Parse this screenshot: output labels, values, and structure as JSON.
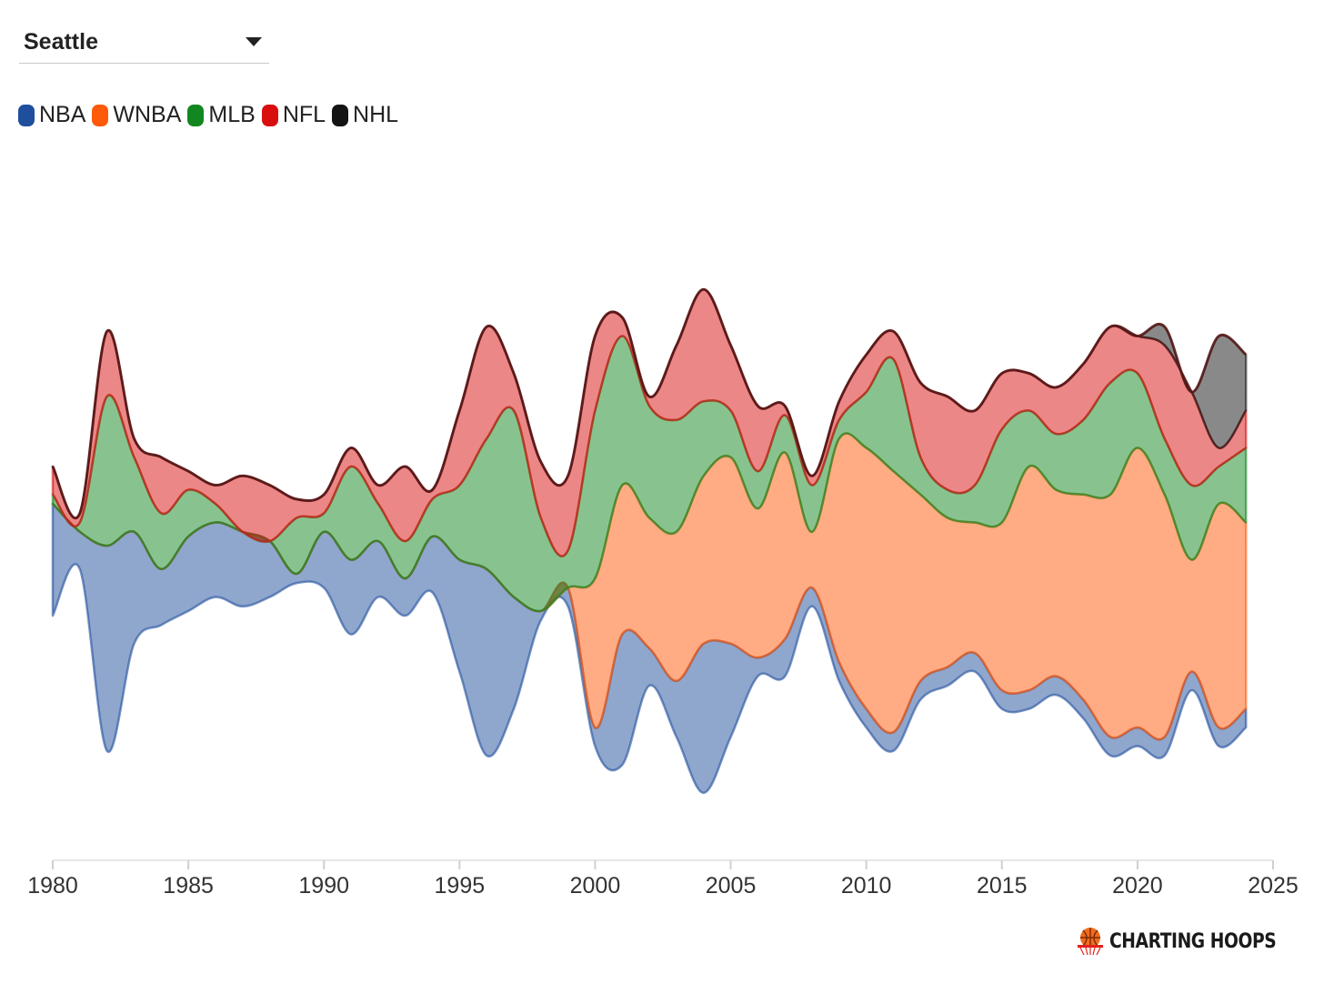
{
  "selector": {
    "value": "Seattle"
  },
  "legend": [
    {
      "label": "NBA",
      "color": "#1f4e9c"
    },
    {
      "label": "WNBA",
      "color": "#ff5a0a"
    },
    {
      "label": "MLB",
      "color": "#12871f"
    },
    {
      "label": "NFL",
      "color": "#d90f0f"
    },
    {
      "label": "NHL",
      "color": "#141414"
    }
  ],
  "brand": {
    "name": "CHARTING HOOPS"
  },
  "chart_data": {
    "type": "area",
    "subtype": "streamgraph",
    "title": "",
    "xlabel": "",
    "ylabel": "",
    "xlim": [
      1980,
      2025
    ],
    "x_ticks": [
      1980,
      1985,
      1990,
      1995,
      2000,
      2005,
      2010,
      2015,
      2020,
      2025
    ],
    "years": [
      1980,
      1981,
      1982,
      1983,
      1984,
      1985,
      1986,
      1987,
      1988,
      1989,
      1990,
      1991,
      1992,
      1993,
      1994,
      1995,
      1996,
      1997,
      1998,
      1999,
      2000,
      2001,
      2002,
      2003,
      2004,
      2005,
      2006,
      2007,
      2008,
      2009,
      2010,
      2011,
      2012,
      2013,
      2014,
      2015,
      2016,
      2017,
      2018,
      2019,
      2020,
      2021,
      2022,
      2023,
      2024
    ],
    "series": [
      {
        "name": "NBA",
        "values": [
          6,
          2,
          11,
          6,
          3,
          4,
          4,
          4,
          3,
          0.5,
          3,
          4,
          3,
          2,
          3,
          6,
          10,
          6,
          0.5,
          1,
          1,
          7,
          2,
          3,
          8,
          5,
          1,
          2,
          1,
          1,
          1,
          1,
          1,
          1,
          1,
          1,
          1,
          1,
          1,
          1,
          1,
          1,
          1,
          1,
          1
        ]
      },
      {
        "name": "WNBA",
        "values": [
          0,
          0,
          0,
          0,
          0,
          0,
          0,
          0,
          0,
          0,
          0,
          0,
          0,
          0,
          0,
          0,
          0,
          0,
          0,
          0,
          8,
          8,
          7,
          8,
          9,
          10,
          8,
          10,
          3,
          12,
          14,
          14,
          10,
          8,
          7,
          9,
          12,
          10,
          11,
          13,
          15,
          13,
          6,
          12,
          10
        ]
      },
      {
        "name": "MLB",
        "values": [
          0.5,
          0.5,
          8,
          4,
          3,
          2.5,
          1,
          0,
          0,
          3,
          1,
          5,
          2,
          2,
          2,
          4,
          7,
          10,
          5,
          2,
          9,
          8,
          6,
          6,
          4,
          2.5,
          2,
          2,
          2.5,
          1,
          3,
          6,
          2,
          1.5,
          2,
          5,
          3,
          3,
          4,
          6,
          4,
          3,
          4,
          2,
          4
        ]
      },
      {
        "name": "NFL",
        "values": [
          1.5,
          0.5,
          3.5,
          1,
          3,
          1,
          1,
          3,
          3,
          1,
          1,
          1,
          1,
          4,
          0.5,
          4,
          6,
          2,
          3,
          4,
          4,
          1,
          0.5,
          4,
          6,
          3.5,
          3.5,
          0.5,
          0.5,
          1,
          2,
          1.5,
          4,
          5,
          4,
          3,
          2,
          2.5,
          3,
          3,
          2,
          5,
          5,
          1,
          2
        ]
      },
      {
        "name": "NHL",
        "values": [
          0,
          0,
          0,
          0,
          0,
          0,
          0,
          0,
          0,
          0,
          0,
          0,
          0,
          0,
          0,
          0,
          0,
          0,
          0,
          0,
          0,
          0,
          0,
          0,
          0,
          0,
          0,
          0,
          0,
          0,
          0,
          0,
          0,
          0,
          0,
          0,
          0,
          0,
          0,
          0,
          0,
          1,
          0,
          6,
          3
        ]
      }
    ],
    "legend_position": "top-left",
    "grid": false
  }
}
